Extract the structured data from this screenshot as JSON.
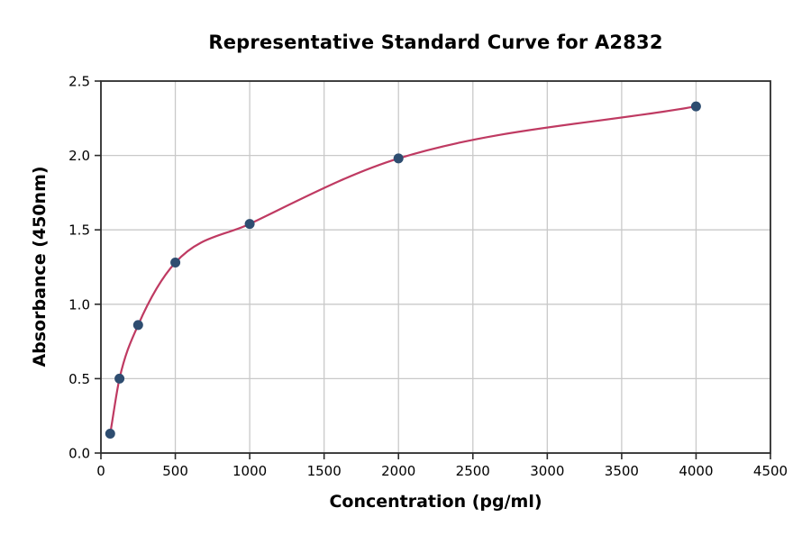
{
  "chart_data": {
    "type": "scatter",
    "title": "Representative Standard Curve for A2832",
    "xlabel": "Concentration (pg/ml)",
    "ylabel": "Absorbance (450nm)",
    "xlim": [
      0,
      4500
    ],
    "ylim": [
      0.0,
      2.5
    ],
    "x_ticks": [
      "0",
      "500",
      "1000",
      "1500",
      "2000",
      "2500",
      "3000",
      "3500",
      "4000",
      "4500"
    ],
    "x_tick_values": [
      0,
      500,
      1000,
      1500,
      2000,
      2500,
      3000,
      3500,
      4000,
      4500
    ],
    "y_ticks": [
      "0.0",
      "0.5",
      "1.0",
      "1.5",
      "2.0",
      "2.5"
    ],
    "y_tick_values": [
      0.0,
      0.5,
      1.0,
      1.5,
      2.0,
      2.5
    ],
    "grid": true,
    "legend": "none",
    "fit_line": true,
    "points": [
      {
        "x": 62.5,
        "y": 0.13
      },
      {
        "x": 125,
        "y": 0.5
      },
      {
        "x": 250,
        "y": 0.86
      },
      {
        "x": 500,
        "y": 1.28
      },
      {
        "x": 1000,
        "y": 1.54
      },
      {
        "x": 2000,
        "y": 1.98
      },
      {
        "x": 4000,
        "y": 2.33
      }
    ],
    "colors": {
      "curve": "#bf3a62",
      "point": "#2e4d70",
      "grid": "#c9c9c9",
      "frame": "#2b2b2b",
      "text": "#000000",
      "background": "#ffffff"
    }
  }
}
